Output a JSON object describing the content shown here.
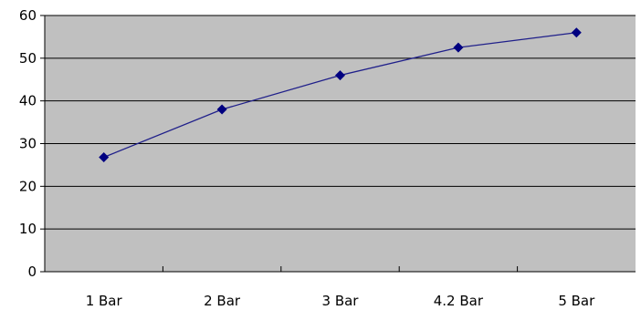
{
  "chart_data": {
    "type": "line",
    "categories": [
      "1 Bar",
      "2 Bar",
      "3 Bar",
      "4.2 Bar",
      "5 Bar"
    ],
    "series": [
      {
        "values": [
          26.8,
          38.0,
          46.0,
          52.5,
          56.0
        ]
      }
    ],
    "title": "",
    "xlabel": "",
    "ylabel": "",
    "ylim": [
      0,
      60
    ],
    "yticks": [
      0,
      10,
      20,
      30,
      40,
      50,
      60
    ],
    "grid": "horizontal",
    "legend": "none",
    "colors": {
      "plot_background": "#c0c0c0",
      "gridline": "#000000",
      "line": "#1f1f8a",
      "marker": "#000080"
    }
  }
}
